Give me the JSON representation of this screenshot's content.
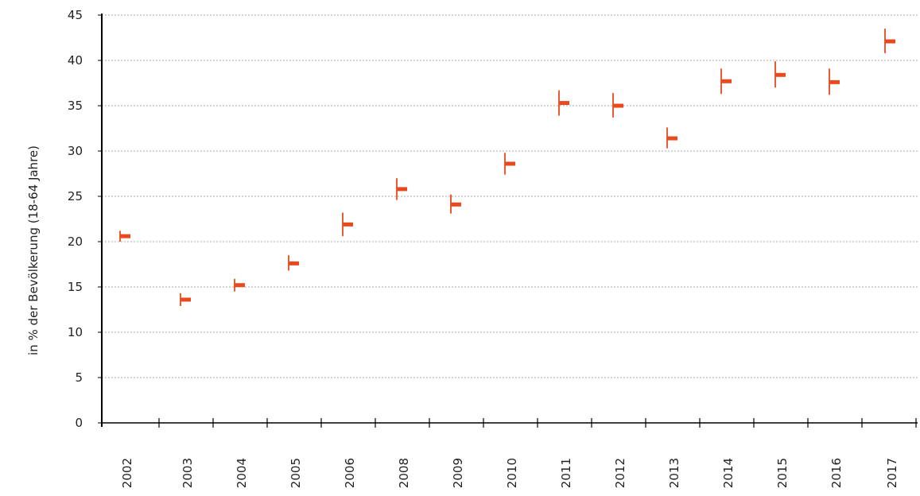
{
  "chart_data": {
    "type": "scatter",
    "style": "high-low-mean",
    "title": "",
    "xlabel": "",
    "ylabel": "in % der Bevölkerung (18-64 Jahre)",
    "ylim": [
      0,
      45
    ],
    "yticks": [
      0,
      5,
      10,
      15,
      20,
      25,
      30,
      35,
      40,
      45
    ],
    "grid": true,
    "legend": "none",
    "color": "#e8491d",
    "categories": [
      "2002",
      "2003",
      "2004",
      "2005",
      "2006",
      "2008",
      "2009",
      "2010",
      "2011",
      "2012",
      "2013",
      "2014",
      "2015",
      "2016",
      "2017"
    ],
    "series": [
      {
        "values": [
          20.6,
          13.6,
          15.2,
          17.6,
          21.9,
          25.8,
          24.1,
          28.6,
          35.3,
          35.0,
          31.4,
          37.7,
          38.4,
          37.6,
          42.1
        ],
        "low": [
          20.0,
          12.9,
          14.5,
          16.8,
          20.6,
          24.6,
          23.1,
          27.4,
          33.9,
          33.7,
          30.3,
          36.3,
          37.0,
          36.2,
          40.8
        ],
        "high": [
          21.2,
          14.3,
          15.9,
          18.5,
          23.2,
          27.0,
          25.2,
          29.8,
          36.7,
          36.4,
          32.6,
          39.1,
          39.9,
          39.1,
          43.5
        ]
      }
    ]
  }
}
